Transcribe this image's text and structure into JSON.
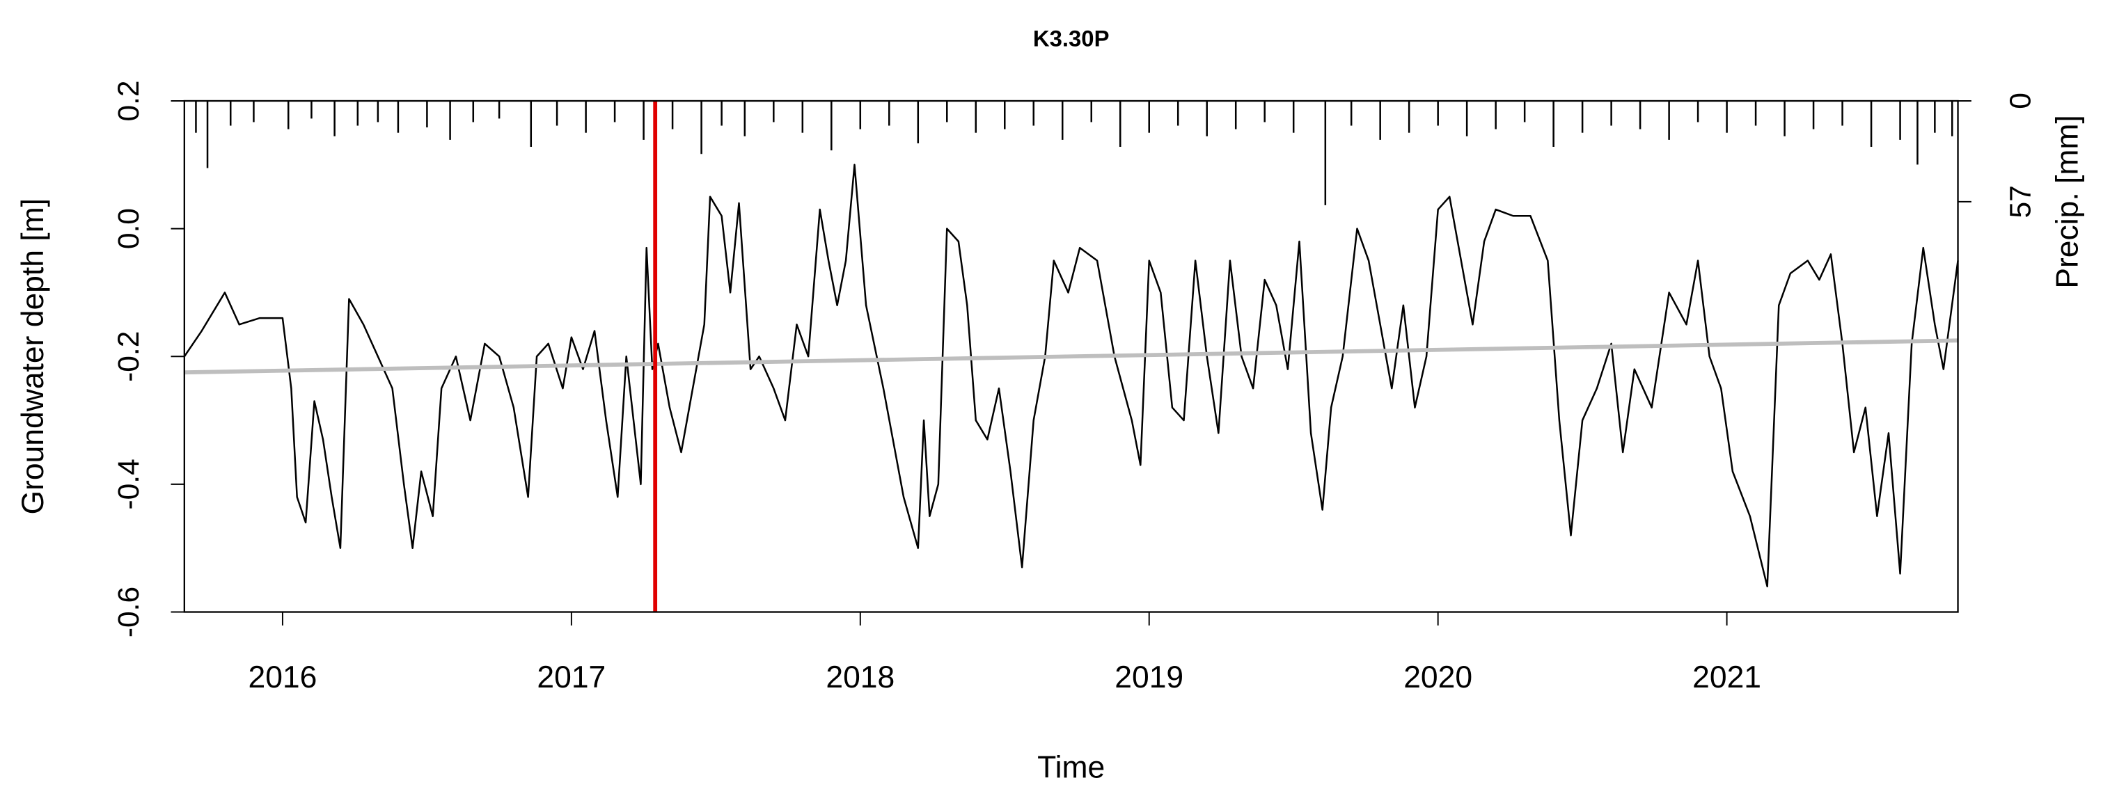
{
  "chart_data": {
    "type": "line",
    "title": "K3.30P",
    "xlabel": "Time",
    "ylabel": "Groundwater depth [m]",
    "y2label": "Precip. [mm]",
    "xlim": [
      2015.66,
      2021.8
    ],
    "xticks": [
      2016,
      2017,
      2018,
      2019,
      2020,
      2021
    ],
    "ylim": [
      -0.6,
      0.2
    ],
    "yticks": [
      0.2,
      {
        "value": 0,
        "label": "0.0"
      },
      -0.2,
      -0.4,
      -0.6
    ],
    "y2lim": [
      289,
      0
    ],
    "y2ticks": [
      0,
      57
    ],
    "vline": {
      "x": 2017.29,
      "color": "#e00000"
    },
    "series": [
      {
        "color": "#000000",
        "x": [
          2015.66,
          2015.72,
          2015.8,
          2015.85,
          2015.92,
          2016,
          2016.03,
          2016.05,
          2016.08,
          2016.11,
          2016.14,
          2016.17,
          2016.2,
          2016.23,
          2016.28,
          2016.33,
          2016.38,
          2016.42,
          2016.45,
          2016.48,
          2016.52,
          2016.55,
          2016.6,
          2016.65,
          2016.7,
          2016.75,
          2016.8,
          2016.85,
          2016.88,
          2016.92,
          2016.97,
          2017,
          2017.04,
          2017.08,
          2017.12,
          2017.16,
          2017.19,
          2017.22,
          2017.24,
          2017.26,
          2017.28,
          2017.3,
          2017.34,
          2017.38,
          2017.42,
          2017.46,
          2017.48,
          2017.52,
          2017.55,
          2017.58,
          2017.62,
          2017.65,
          2017.7,
          2017.74,
          2017.78,
          2017.82,
          2017.86,
          2017.89,
          2017.92,
          2017.95,
          2017.98,
          2018.02,
          2018.08,
          2018.15,
          2018.2,
          2018.22,
          2018.24,
          2018.27,
          2018.3,
          2018.34,
          2018.37,
          2018.4,
          2018.44,
          2018.48,
          2018.52,
          2018.56,
          2018.6,
          2018.64,
          2018.67,
          2018.72,
          2018.76,
          2018.82,
          2018.88,
          2018.94,
          2018.97,
          2019,
          2019.04,
          2019.08,
          2019.12,
          2019.16,
          2019.2,
          2019.24,
          2019.28,
          2019.32,
          2019.36,
          2019.4,
          2019.44,
          2019.48,
          2019.52,
          2019.56,
          2019.6,
          2019.63,
          2019.67,
          2019.72,
          2019.76,
          2019.8,
          2019.84,
          2019.88,
          2019.92,
          2019.96,
          2020,
          2020.04,
          2020.08,
          2020.12,
          2020.16,
          2020.2,
          2020.26,
          2020.32,
          2020.38,
          2020.42,
          2020.46,
          2020.5,
          2020.55,
          2020.6,
          2020.64,
          2020.68,
          2020.74,
          2020.8,
          2020.86,
          2020.9,
          2020.94,
          2020.98,
          2021.02,
          2021.08,
          2021.14,
          2021.18,
          2021.22,
          2021.28,
          2021.32,
          2021.36,
          2021.4,
          2021.44,
          2021.48,
          2021.52,
          2021.56,
          2021.6,
          2021.64,
          2021.68,
          2021.72,
          2021.75,
          2021.8
        ],
        "values": [
          -0.2,
          -0.16,
          -0.1,
          -0.15,
          -0.14,
          -0.14,
          -0.25,
          -0.42,
          -0.46,
          -0.27,
          -0.33,
          -0.42,
          -0.5,
          -0.11,
          -0.15,
          -0.2,
          -0.25,
          -0.4,
          -0.5,
          -0.38,
          -0.45,
          -0.25,
          -0.2,
          -0.3,
          -0.18,
          -0.2,
          -0.28,
          -0.42,
          -0.2,
          -0.18,
          -0.25,
          -0.17,
          -0.22,
          -0.16,
          -0.3,
          -0.42,
          -0.2,
          -0.32,
          -0.4,
          -0.03,
          -0.22,
          -0.18,
          -0.28,
          -0.35,
          -0.25,
          -0.15,
          0.05,
          0.02,
          -0.1,
          0.04,
          -0.22,
          -0.2,
          -0.25,
          -0.3,
          -0.15,
          -0.2,
          0.03,
          -0.05,
          -0.12,
          -0.05,
          0.1,
          -0.12,
          -0.25,
          -0.42,
          -0.5,
          -0.3,
          -0.45,
          -0.4,
          0,
          -0.02,
          -0.12,
          -0.3,
          -0.33,
          -0.25,
          -0.38,
          -0.53,
          -0.3,
          -0.2,
          -0.05,
          -0.1,
          -0.03,
          -0.05,
          -0.2,
          -0.3,
          -0.37,
          -0.05,
          -0.1,
          -0.28,
          -0.3,
          -0.05,
          -0.2,
          -0.32,
          -0.05,
          -0.2,
          -0.25,
          -0.08,
          -0.12,
          -0.22,
          -0.02,
          -0.32,
          -0.44,
          -0.28,
          -0.2,
          0,
          -0.05,
          -0.15,
          -0.25,
          -0.12,
          -0.28,
          -0.2,
          0.03,
          0.05,
          -0.05,
          -0.15,
          -0.02,
          0.03,
          0.02,
          0.02,
          -0.05,
          -0.3,
          -0.48,
          -0.3,
          -0.25,
          -0.18,
          -0.35,
          -0.22,
          -0.28,
          -0.1,
          -0.15,
          -0.05,
          -0.2,
          -0.25,
          -0.38,
          -0.45,
          -0.56,
          -0.12,
          -0.07,
          -0.05,
          -0.08,
          -0.04,
          -0.18,
          -0.35,
          -0.28,
          -0.45,
          -0.32,
          -0.54,
          -0.18,
          -0.03,
          -0.15,
          -0.22,
          -0.05
        ]
      },
      {
        "color": "#bebebe",
        "x": [
          2015.66,
          2021.8
        ],
        "values": [
          -0.225,
          -0.175
        ]
      },
      {
        "color": "#000000",
        "axis": "y2",
        "type": "bar",
        "x": [
          2015.7,
          2015.74,
          2015.82,
          2015.9,
          2016.02,
          2016.1,
          2016.18,
          2016.26,
          2016.33,
          2016.4,
          2016.5,
          2016.58,
          2016.66,
          2016.75,
          2016.86,
          2016.95,
          2017.05,
          2017.15,
          2017.25,
          2017.35,
          2017.45,
          2017.52,
          2017.6,
          2017.7,
          2017.8,
          2017.9,
          2018.0,
          2018.1,
          2018.2,
          2018.3,
          2018.4,
          2018.5,
          2018.6,
          2018.7,
          2018.8,
          2018.9,
          2019.0,
          2019.1,
          2019.2,
          2019.3,
          2019.4,
          2019.5,
          2019.61,
          2019.7,
          2019.8,
          2019.9,
          2020.0,
          2020.1,
          2020.2,
          2020.3,
          2020.4,
          2020.5,
          2020.6,
          2020.7,
          2020.8,
          2020.9,
          2021.0,
          2021.1,
          2021.2,
          2021.3,
          2021.4,
          2021.5,
          2021.6,
          2021.66,
          2021.72,
          2021.78
        ],
        "values": [
          18,
          38,
          14,
          12,
          16,
          10,
          20,
          14,
          12,
          18,
          15,
          22,
          12,
          10,
          26,
          14,
          18,
          12,
          22,
          16,
          30,
          14,
          20,
          12,
          18,
          28,
          16,
          14,
          24,
          12,
          18,
          16,
          14,
          22,
          12,
          26,
          18,
          14,
          20,
          16,
          12,
          18,
          59,
          14,
          22,
          18,
          14,
          20,
          16,
          12,
          26,
          18,
          14,
          16,
          22,
          12,
          18,
          14,
          20,
          16,
          14,
          26,
          22,
          36,
          18,
          20
        ]
      }
    ]
  }
}
